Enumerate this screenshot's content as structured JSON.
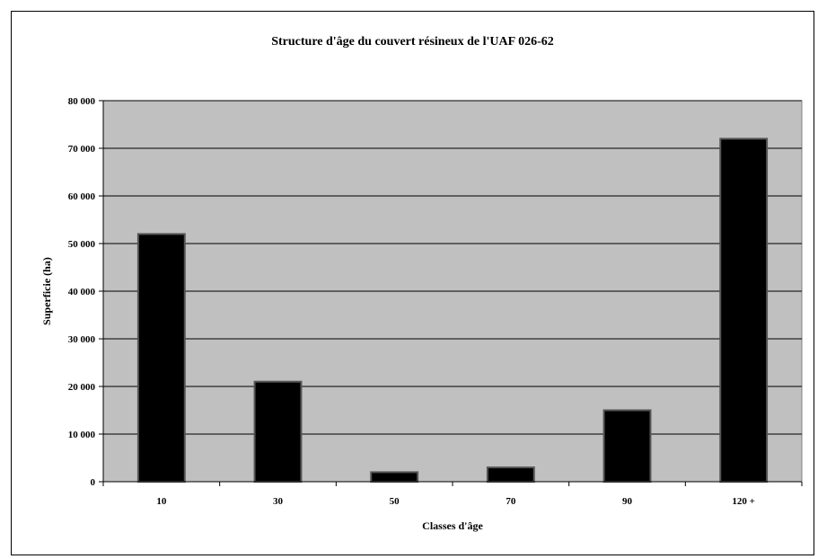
{
  "chart_data": {
    "type": "bar",
    "title": "Structure d'âge du couvert résineux de l'UAF 026-62",
    "xlabel": "Classes d'âge",
    "ylabel": "Superficie (ha)",
    "categories": [
      "10",
      "30",
      "50",
      "70",
      "90",
      "120 +"
    ],
    "values": [
      52000,
      21000,
      2000,
      3000,
      15000,
      72000
    ],
    "ylim": [
      0,
      80000
    ],
    "yticks": [
      0,
      10000,
      20000,
      30000,
      40000,
      50000,
      60000,
      70000,
      80000
    ],
    "ytick_labels": [
      "0",
      "10 000",
      "20 000",
      "30 000",
      "40 000",
      "50 000",
      "60 000",
      "70 000",
      "80 000"
    ],
    "grid": true,
    "legend": "none",
    "colors": {
      "plot_background": "#c0c0c0",
      "bar_fill": "#000000",
      "bar_outline": "#555555",
      "gridline": "#000000"
    }
  }
}
